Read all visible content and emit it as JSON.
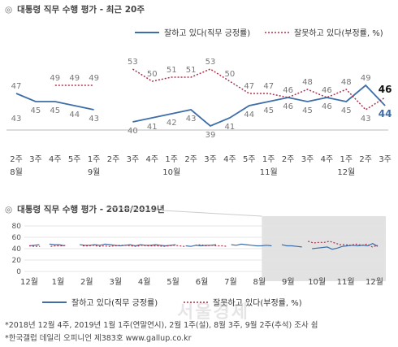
{
  "colors": {
    "approve": "#3d6ea8",
    "disapprove": "#b0304a",
    "shade": "#e2e2e2",
    "axis": "#bbbbbb"
  },
  "legend": {
    "approve": "잘하고 있다(직무 긍정률)",
    "disapprove": "잘못하고 있다(부정률, %)"
  },
  "notes": [
    "*2018년 12월 4주, 2019년 1월 1주(연말연시), 2월 1주(설), 8월 3주, 9월 2주(추석) 조사 쉼",
    "*한국갤럽 데일리 오피니언 제383호 www.gallup.co.kr"
  ],
  "watermark": "서울경제",
  "chart_data": [
    {
      "type": "line",
      "title": "대통령 직무 수행 평가 - 최근 20주",
      "title_mark": "◎",
      "weeks": [
        "2주",
        "3주",
        "4주",
        "5주",
        "1주",
        "2주",
        "3주",
        "4주",
        "1주",
        "2주",
        "3주",
        "4주",
        "5주",
        "1주",
        "2주",
        "3주",
        "4주",
        "1주",
        "2주",
        "3주"
      ],
      "months": [
        {
          "at": 0,
          "label": "8월"
        },
        {
          "at": 4,
          "label": "9월"
        },
        {
          "at": 8,
          "label": "10월"
        },
        {
          "at": 13,
          "label": "11월"
        },
        {
          "at": 17,
          "label": "12월"
        }
      ],
      "series": [
        {
          "name": "잘하고 있다(직무 긍정률)",
          "key": "approve",
          "values": [
            47,
            45,
            45,
            44,
            43,
            null,
            40,
            41,
            42,
            43,
            39,
            41,
            44,
            45,
            46,
            45,
            46,
            45,
            49,
            44
          ]
        },
        {
          "name": "잘못하고 있다(부정률, %)",
          "key": "disapprove",
          "values": [
            43,
            null,
            49,
            49,
            49,
            null,
            53,
            50,
            51,
            51,
            53,
            50,
            47,
            47,
            46,
            48,
            46,
            48,
            43,
            46
          ]
        }
      ],
      "ylim": [
        30,
        60
      ],
      "legend_position": "top-right"
    },
    {
      "type": "line",
      "title": "대통령 직무 수행 평가 - 2018/2019년",
      "title_mark": "◎",
      "y_ticks": [
        0,
        20,
        40,
        60,
        80
      ],
      "months": [
        "12월",
        "1월",
        "2월",
        "3월",
        "4월",
        "5월",
        "6월",
        "7월",
        "8월",
        "9월",
        "10월",
        "11월",
        "12월"
      ],
      "highlight_from_month": "8월",
      "series": [
        {
          "name": "잘하고 있다(직무 긍정률)",
          "key": "approve",
          "segments": [
            [
              45,
              46,
              47,
              null,
              48,
              47,
              47,
              45,
              null,
              null,
              47,
              46,
              46,
              47,
              46,
              48,
              47,
              46,
              45,
              46,
              47,
              45,
              47,
              46,
              46,
              47,
              46,
              45,
              46,
              47,
              null,
              45,
              44,
              46,
              45,
              46,
              46,
              47,
              null,
              null,
              47,
              46,
              48,
              47,
              46,
              45,
              45,
              46,
              45,
              null,
              47,
              45,
              45,
              44,
              43,
              null,
              40,
              41,
              42,
              43,
              39,
              41,
              44,
              45,
              46,
              45,
              46,
              45,
              49,
              44
            ]
          ]
        },
        {
          "name": "잘못하고 있다(부정률, %)",
          "key": "disapprove",
          "segments": [
            [
              45,
              44,
              44,
              null,
              44,
              45,
              45,
              46,
              null,
              null,
              45,
              45,
              46,
              44,
              45,
              44,
              45,
              46,
              46,
              45,
              44,
              46,
              45,
              45,
              45,
              44,
              45,
              46,
              45,
              44,
              null,
              46,
              47,
              45,
              46,
              45,
              45,
              44,
              null,
              null,
              43,
              null,
              49,
              null,
              null,
              null,
              null,
              null,
              null,
              null,
              49,
              null,
              53,
              50,
              51,
              51,
              53,
              50,
              47,
              47,
              46,
              48,
              46,
              48,
              43,
              46
            ]
          ]
        }
      ],
      "ylim": [
        0,
        80
      ]
    }
  ]
}
